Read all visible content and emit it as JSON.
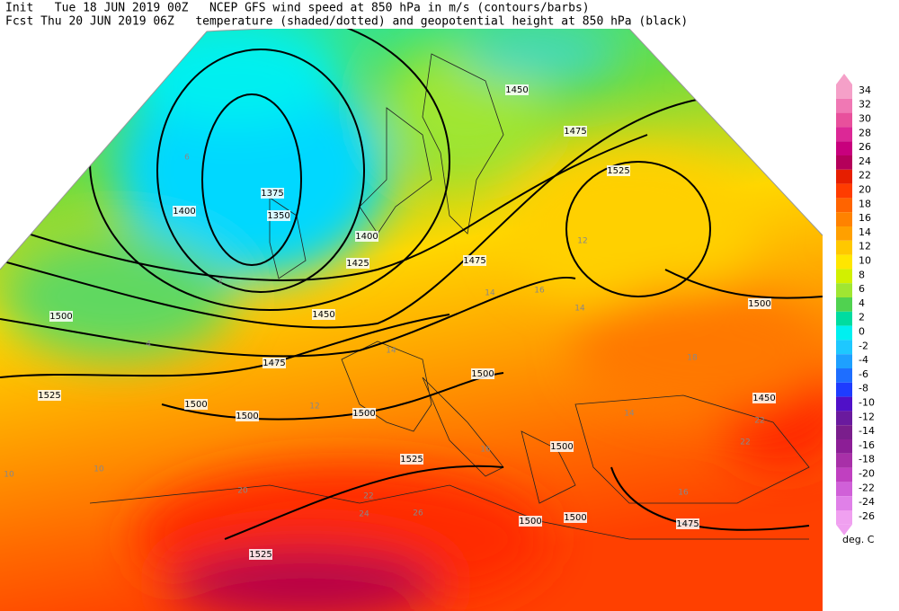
{
  "header": {
    "line1": "Init   Tue 18 JUN 2019 00Z   NCEP GFS wind speed at 850 hPa in m/s (contours/barbs)",
    "line2": "Fcst Thu 20 JUN 2019 06Z   temperature (shaded/dotted) and geopotential height at 850 hPa (black)"
  },
  "legend": {
    "unit": "deg. C",
    "levels": [
      34,
      32,
      30,
      28,
      26,
      24,
      22,
      20,
      18,
      16,
      14,
      12,
      10,
      8,
      6,
      4,
      2,
      0,
      -2,
      -4,
      -6,
      -8,
      -10,
      -12,
      -14,
      -16,
      -18,
      -20,
      -22,
      -24,
      -26
    ],
    "colors": [
      "#f5a0c8",
      "#f078b4",
      "#e8509c",
      "#dc2896",
      "#c8007d",
      "#b4005a",
      "#e61e00",
      "#ff3c00",
      "#ff6400",
      "#ff8200",
      "#ffa000",
      "#ffc800",
      "#ffe600",
      "#d2f000",
      "#a0e632",
      "#50d250",
      "#00dca0",
      "#00f0f0",
      "#1ec8ff",
      "#1ea0ff",
      "#1e6eff",
      "#1e3cff",
      "#5010c8",
      "#6a1a9e",
      "#7a1e8c",
      "#8c1e96",
      "#a830a8",
      "#c040c0",
      "#d060d8",
      "#e080e8",
      "#f0a0f0"
    ]
  },
  "map": {
    "height_labels": [
      1450,
      1475,
      1525,
      1375,
      1350,
      1400,
      1400,
      1425,
      1450,
      1475,
      1500,
      1475,
      1525,
      1500,
      1500,
      1500,
      1500,
      1500,
      1450,
      1500,
      1525,
      1500,
      1500,
      1475,
      1525
    ],
    "temperature_labels": [
      14,
      16,
      14,
      12,
      14,
      16,
      18,
      22,
      20,
      24,
      26,
      22,
      10,
      10,
      12,
      6,
      4,
      2,
      22,
      14,
      16
    ]
  }
}
